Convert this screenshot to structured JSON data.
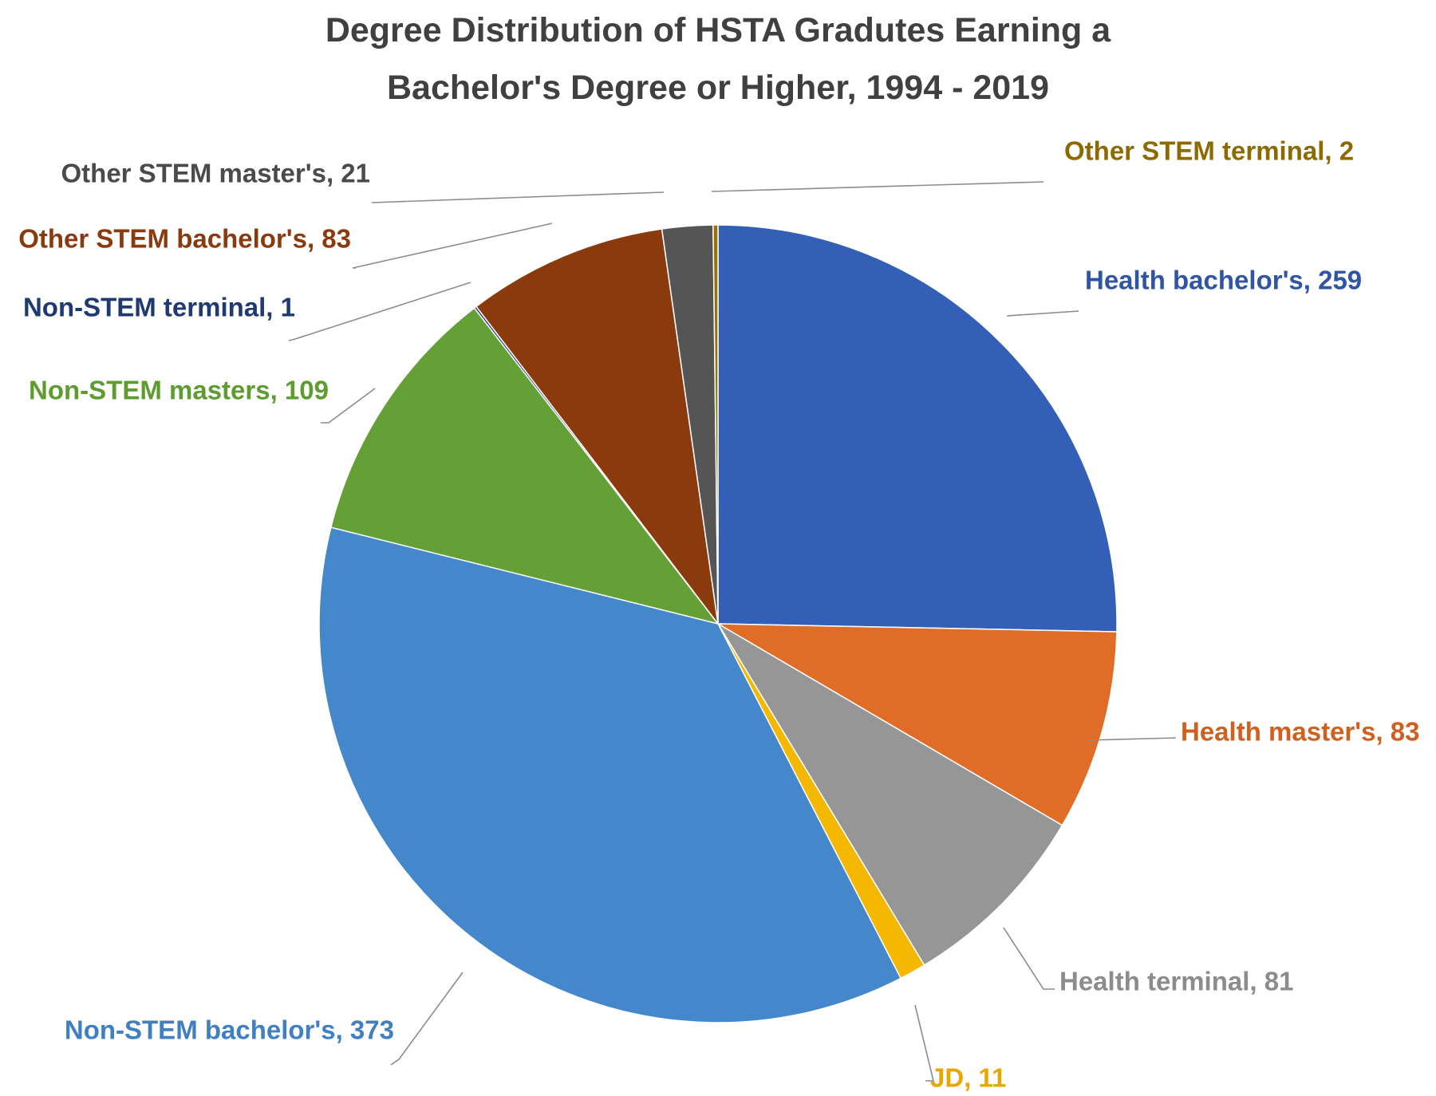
{
  "title_lines": [
    "Degree Distribution of HSTA Gradutes Earning a",
    "Bachelor's Degree or Higher, 1994 - 2019"
  ],
  "chart_data": {
    "type": "pie",
    "title": "Degree Distribution of HSTA Gradutes Earning a Bachelor's Degree or Higher, 1994 - 2019",
    "start_angle": "12 o'clock, clockwise",
    "legend": "none (data labels with leader lines)",
    "slices": [
      {
        "label": "Health bachelor's, 259",
        "category": "Health bachelor's",
        "value": 259,
        "color": "#3360B6",
        "label_color": "#2F55A4"
      },
      {
        "label": "Health master's, 83",
        "category": "Health master's",
        "value": 83,
        "color": "#E06D27",
        "label_color": "#D0601E"
      },
      {
        "label": "Health terminal, 81",
        "category": "Health terminal",
        "value": 81,
        "color": "#969696",
        "label_color": "#8C8C8C"
      },
      {
        "label": "JD, 11",
        "category": "JD",
        "value": 11,
        "color": "#F5B800",
        "label_color": "#E6A800"
      },
      {
        "label": "Non-STEM bachelor's, 373",
        "category": "Non-STEM bachelor's",
        "value": 373,
        "color": "#4488CB",
        "label_color": "#3F7FC2"
      },
      {
        "label": "Non-STEM masters, 109",
        "category": "Non-STEM masters",
        "value": 109,
        "color": "#64A035",
        "label_color": "#5E9C2F"
      },
      {
        "label": "Non-STEM terminal, 1",
        "category": "Non-STEM terminal",
        "value": 1,
        "color": "#223E78",
        "label_color": "#1F3A70"
      },
      {
        "label": "Other STEM bachelor's, 83",
        "category": "Other STEM bachelor's",
        "value": 83,
        "color": "#8B3A0D",
        "label_color": "#8A3A0F"
      },
      {
        "label": "Other STEM master's, 21",
        "category": "Other STEM master's",
        "value": 21,
        "color": "#555555",
        "label_color": "#4A4A4A"
      },
      {
        "label": "Other STEM terminal, 2",
        "category": "Other STEM terminal",
        "value": 2,
        "color": "#9A7200",
        "label_color": "#8C6A00"
      }
    ]
  }
}
